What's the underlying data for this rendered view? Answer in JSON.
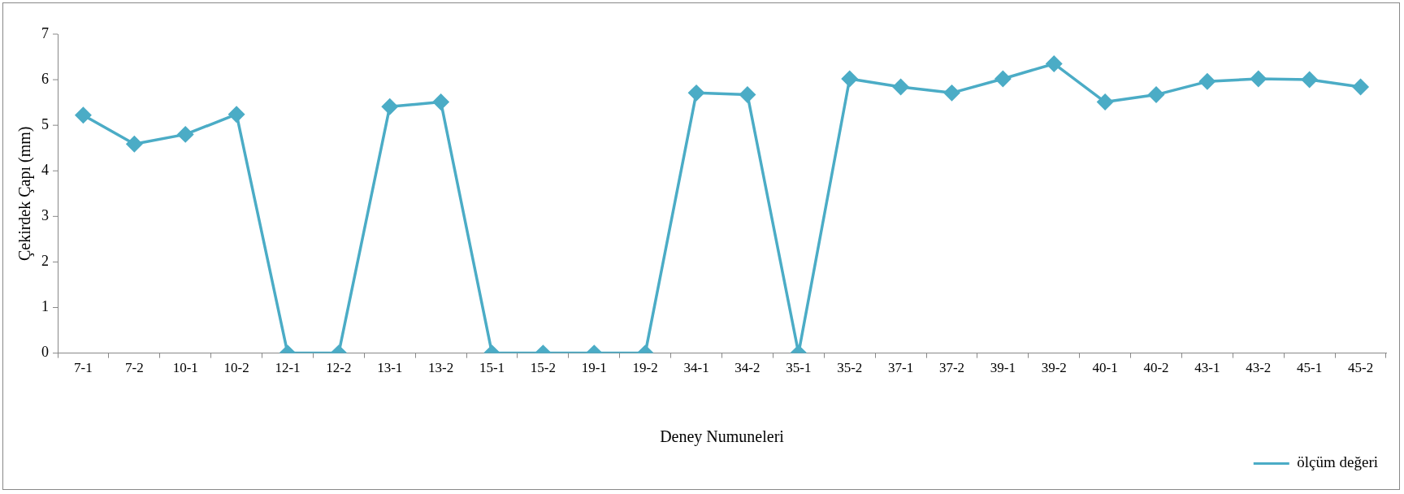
{
  "chart_data": {
    "type": "line",
    "xlabel": "Deney Numuneleri",
    "ylabel": "Çekirdek Çapı (mm)",
    "categories": [
      "7-1",
      "7-2",
      "10-1",
      "10-2",
      "12-1",
      "12-2",
      "13-1",
      "13-2",
      "15-1",
      "15-2",
      "19-1",
      "19-2",
      "34-1",
      "34-2",
      "35-1",
      "35-2",
      "37-1",
      "37-2",
      "39-1",
      "39-2",
      "40-1",
      "40-2",
      "43-1",
      "43-2",
      "45-1",
      "45-2"
    ],
    "series": [
      {
        "name": "ölçüm değeri",
        "color": "#4bacc6",
        "values": [
          5.22,
          4.59,
          4.8,
          5.24,
          0,
          0,
          5.41,
          5.51,
          0,
          0,
          0,
          0,
          5.71,
          5.67,
          0,
          6.02,
          5.84,
          5.71,
          6.02,
          6.35,
          5.51,
          5.67,
          5.96,
          6.02,
          6.0,
          5.84
        ]
      }
    ],
    "ylim": [
      0,
      7
    ],
    "yticks": [
      0,
      1,
      2,
      3,
      4,
      5,
      6,
      7
    ],
    "legend": "bottom right",
    "marker": "diamond",
    "line_style": "solid"
  }
}
